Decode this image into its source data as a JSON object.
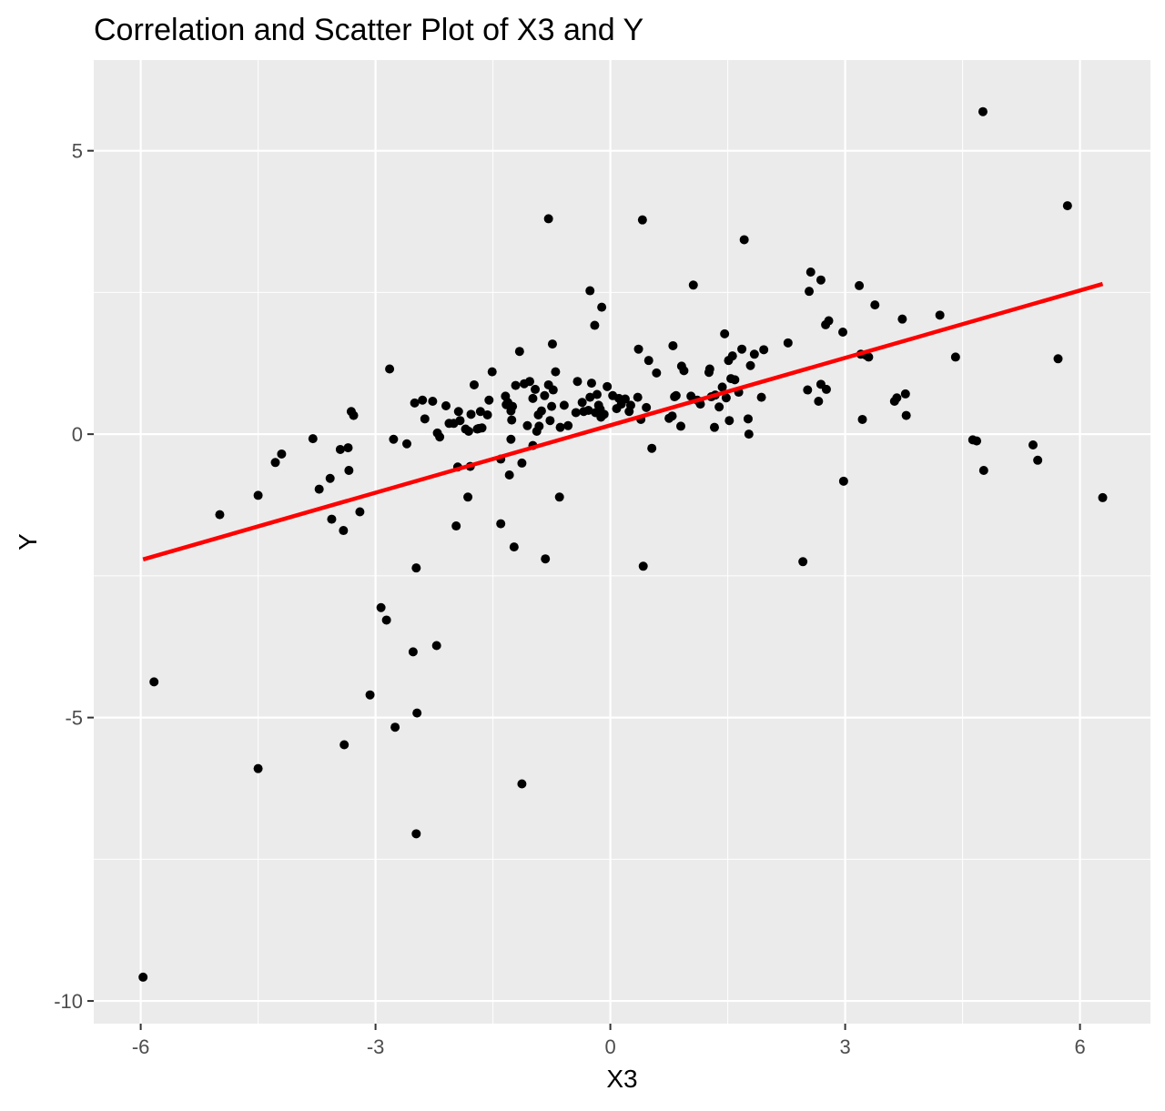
{
  "chart_data": {
    "type": "scatter",
    "title": "Correlation and Scatter Plot of X3 and Y",
    "xlabel": "X3",
    "ylabel": "Y",
    "xlim": [
      -6.6,
      6.9
    ],
    "ylim": [
      -10.4,
      6.6
    ],
    "xticks": [
      -6,
      -3,
      0,
      3,
      6
    ],
    "yticks": [
      -10,
      -5,
      0,
      5
    ],
    "xtick_labels": [
      "-6",
      "-3",
      "0",
      "3",
      "6"
    ],
    "ytick_labels": [
      "-10",
      "-5",
      "0",
      "5"
    ],
    "grid": true,
    "panel_background": "#ebebeb",
    "grid_color": "#ffffff",
    "point_color": "#000000",
    "line_color": "#ff0000",
    "fit_line": {
      "x": [
        -5.97,
        6.29
      ],
      "y": [
        -2.21,
        2.65
      ]
    },
    "points": [
      [
        -5.97,
        -9.58
      ],
      [
        -5.83,
        -4.37
      ],
      [
        -4.99,
        -1.42
      ],
      [
        -4.5,
        -1.08
      ],
      [
        -4.5,
        -5.9
      ],
      [
        -4.28,
        -0.5
      ],
      [
        -4.2,
        -0.35
      ],
      [
        -3.8,
        -0.08
      ],
      [
        -3.72,
        -0.97
      ],
      [
        -3.58,
        -0.78
      ],
      [
        -3.56,
        -1.5
      ],
      [
        -3.45,
        -0.27
      ],
      [
        -3.41,
        -1.7
      ],
      [
        -3.4,
        -5.48
      ],
      [
        -3.35,
        -0.24
      ],
      [
        -3.34,
        -0.64
      ],
      [
        -3.31,
        0.4
      ],
      [
        -3.28,
        0.33
      ],
      [
        -3.2,
        -1.37
      ],
      [
        -3.07,
        -4.6
      ],
      [
        -2.93,
        -3.06
      ],
      [
        -2.86,
        -3.28
      ],
      [
        -2.82,
        1.15
      ],
      [
        -2.77,
        -0.09
      ],
      [
        -2.75,
        -5.17
      ],
      [
        -2.6,
        -0.17
      ],
      [
        -2.52,
        -3.84
      ],
      [
        -2.5,
        0.55
      ],
      [
        -2.48,
        -2.36
      ],
      [
        -2.48,
        -7.05
      ],
      [
        -2.47,
        -4.92
      ],
      [
        -2.4,
        0.6
      ],
      [
        -2.37,
        0.27
      ],
      [
        -2.27,
        0.58
      ],
      [
        -2.22,
        -3.73
      ],
      [
        -2.21,
        0.02
      ],
      [
        -2.18,
        -0.05
      ],
      [
        -2.1,
        0.5
      ],
      [
        -2.06,
        0.19
      ],
      [
        -2.0,
        0.19
      ],
      [
        -1.97,
        -1.62
      ],
      [
        -1.95,
        -0.58
      ],
      [
        -1.94,
        0.4
      ],
      [
        -1.92,
        0.24
      ],
      [
        -1.85,
        0.09
      ],
      [
        -1.82,
        -1.11
      ],
      [
        -1.81,
        0.05
      ],
      [
        -1.79,
        -0.57
      ],
      [
        -1.78,
        0.35
      ],
      [
        -1.74,
        0.87
      ],
      [
        -1.7,
        0.09
      ],
      [
        -1.68,
        0.1
      ],
      [
        -1.66,
        0.4
      ],
      [
        -1.64,
        0.11
      ],
      [
        -1.57,
        0.34
      ],
      [
        -1.55,
        0.6
      ],
      [
        -1.51,
        1.1
      ],
      [
        -1.4,
        -0.44
      ],
      [
        -1.4,
        -1.58
      ],
      [
        -1.34,
        0.67
      ],
      [
        -1.33,
        0.52
      ],
      [
        -1.31,
        0.56
      ],
      [
        -1.29,
        -0.72
      ],
      [
        -1.27,
        0.41
      ],
      [
        -1.27,
        -0.09
      ],
      [
        -1.26,
        0.48
      ],
      [
        -1.26,
        0.25
      ],
      [
        -1.25,
        0.49
      ],
      [
        -1.23,
        -1.99
      ],
      [
        -1.21,
        0.86
      ],
      [
        -1.16,
        1.46
      ],
      [
        -1.13,
        -0.51
      ],
      [
        -1.13,
        -6.17
      ],
      [
        -1.1,
        0.89
      ],
      [
        -1.06,
        0.15
      ],
      [
        -1.03,
        0.93
      ],
      [
        -0.99,
        -0.2
      ],
      [
        -0.99,
        0.63
      ],
      [
        -0.96,
        0.79
      ],
      [
        -0.94,
        0.05
      ],
      [
        -0.92,
        0.34
      ],
      [
        -0.91,
        0.14
      ],
      [
        -0.88,
        0.41
      ],
      [
        -0.84,
        0.68
      ],
      [
        -0.83,
        -2.2
      ],
      [
        -0.79,
        0.87
      ],
      [
        -0.79,
        3.8
      ],
      [
        -0.77,
        0.24
      ],
      [
        -0.75,
        0.49
      ],
      [
        -0.74,
        1.59
      ],
      [
        -0.73,
        0.78
      ],
      [
        -0.7,
        1.1
      ],
      [
        -0.65,
        -1.11
      ],
      [
        -0.64,
        0.12
      ],
      [
        -0.59,
        0.51
      ],
      [
        -0.54,
        0.15
      ],
      [
        -0.44,
        0.38
      ],
      [
        -0.42,
        0.93
      ],
      [
        -0.36,
        0.56
      ],
      [
        -0.34,
        0.4
      ],
      [
        -0.28,
        0.42
      ],
      [
        -0.26,
        0.65
      ],
      [
        -0.26,
        2.53
      ],
      [
        -0.24,
        0.9
      ],
      [
        -0.2,
        1.92
      ],
      [
        -0.19,
        0.38
      ],
      [
        -0.17,
        0.7
      ],
      [
        -0.15,
        0.51
      ],
      [
        -0.13,
        0.44
      ],
      [
        -0.12,
        0.3
      ],
      [
        -0.11,
        2.24
      ],
      [
        -0.08,
        0.35
      ],
      [
        -0.04,
        0.84
      ],
      [
        0.03,
        0.68
      ],
      [
        0.08,
        0.45
      ],
      [
        0.11,
        0.63
      ],
      [
        0.14,
        0.53
      ],
      [
        0.19,
        0.62
      ],
      [
        0.24,
        0.4
      ],
      [
        0.26,
        0.51
      ],
      [
        0.35,
        0.65
      ],
      [
        0.36,
        1.5
      ],
      [
        0.39,
        0.26
      ],
      [
        0.41,
        3.78
      ],
      [
        0.42,
        -2.33
      ],
      [
        0.46,
        0.47
      ],
      [
        0.49,
        1.3
      ],
      [
        0.53,
        -0.25
      ],
      [
        0.59,
        1.08
      ],
      [
        0.75,
        0.28
      ],
      [
        0.79,
        0.32
      ],
      [
        0.8,
        1.56
      ],
      [
        0.82,
        0.66
      ],
      [
        0.84,
        0.68
      ],
      [
        0.9,
        0.14
      ],
      [
        0.91,
        1.2
      ],
      [
        0.94,
        1.12
      ],
      [
        1.03,
        0.67
      ],
      [
        1.06,
        2.63
      ],
      [
        1.11,
        0.6
      ],
      [
        1.14,
        0.56
      ],
      [
        1.15,
        0.53
      ],
      [
        1.26,
        1.09
      ],
      [
        1.27,
        1.15
      ],
      [
        1.29,
        0.66
      ],
      [
        1.33,
        0.12
      ],
      [
        1.34,
        0.69
      ],
      [
        1.39,
        0.48
      ],
      [
        1.43,
        0.83
      ],
      [
        1.46,
        1.77
      ],
      [
        1.48,
        0.64
      ],
      [
        1.51,
        1.3
      ],
      [
        1.52,
        0.24
      ],
      [
        1.54,
        0.98
      ],
      [
        1.56,
        1.38
      ],
      [
        1.59,
        0.96
      ],
      [
        1.64,
        0.74
      ],
      [
        1.68,
        1.5
      ],
      [
        1.71,
        3.43
      ],
      [
        1.76,
        0.27
      ],
      [
        1.77,
        0.0
      ],
      [
        1.79,
        1.21
      ],
      [
        1.84,
        1.41
      ],
      [
        1.93,
        0.65
      ],
      [
        1.96,
        1.49
      ],
      [
        2.27,
        1.61
      ],
      [
        2.46,
        -2.25
      ],
      [
        2.52,
        0.78
      ],
      [
        2.54,
        2.52
      ],
      [
        2.56,
        2.86
      ],
      [
        2.66,
        0.58
      ],
      [
        2.69,
        2.72
      ],
      [
        2.69,
        0.88
      ],
      [
        2.75,
        1.93
      ],
      [
        2.76,
        0.79
      ],
      [
        2.79,
        2.0
      ],
      [
        2.97,
        1.8
      ],
      [
        2.98,
        -0.83
      ],
      [
        3.18,
        2.62
      ],
      [
        3.2,
        1.41
      ],
      [
        3.22,
        0.26
      ],
      [
        3.27,
        1.39
      ],
      [
        3.3,
        1.36
      ],
      [
        3.38,
        2.28
      ],
      [
        3.63,
        0.58
      ],
      [
        3.66,
        0.64
      ],
      [
        3.73,
        2.03
      ],
      [
        3.77,
        0.71
      ],
      [
        3.78,
        0.33
      ],
      [
        4.21,
        2.1
      ],
      [
        4.41,
        1.36
      ],
      [
        4.63,
        -0.1
      ],
      [
        4.68,
        -0.12
      ],
      [
        4.76,
        5.69
      ],
      [
        4.77,
        -0.64
      ],
      [
        5.4,
        -0.19
      ],
      [
        5.46,
        -0.46
      ],
      [
        5.72,
        1.33
      ],
      [
        5.84,
        4.03
      ],
      [
        6.29,
        -1.12
      ]
    ]
  }
}
